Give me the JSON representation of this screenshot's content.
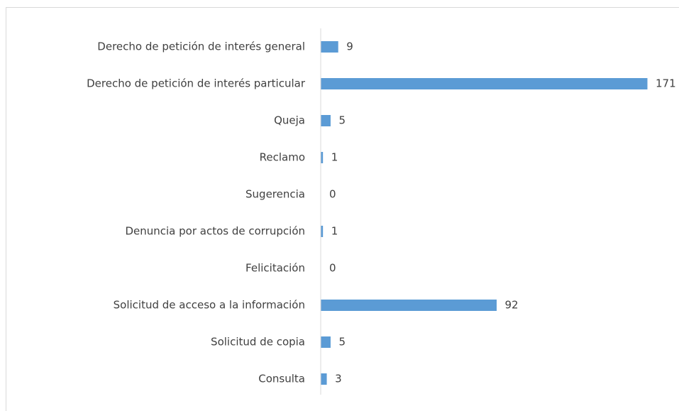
{
  "chart_data": {
    "type": "bar",
    "orientation": "horizontal",
    "color": "#5b9bd5",
    "categories": [
      "Derecho de petición de interés general",
      "Derecho de petición de interés particular",
      "Queja",
      "Reclamo",
      "Sugerencia",
      "Denuncia por actos de corrupción",
      "Felicitación",
      "Solicitud de acceso a la información",
      "Solicitud de copia",
      "Consulta"
    ],
    "values": [
      9,
      171,
      5,
      1,
      0,
      1,
      0,
      92,
      5,
      3
    ]
  }
}
